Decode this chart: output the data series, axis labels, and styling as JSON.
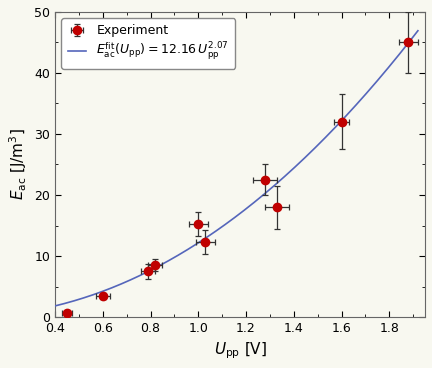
{
  "title": "",
  "xlabel": "$U_{\\mathrm{pp}}$ [V]",
  "ylabel": "$E_{\\mathrm{ac}}$ [J/m$^3$]",
  "xlim": [
    0.4,
    1.95
  ],
  "ylim": [
    0,
    50
  ],
  "xticks": [
    0.4,
    0.6,
    0.8,
    1.0,
    1.2,
    1.4,
    1.6,
    1.8
  ],
  "yticks": [
    0,
    10,
    20,
    30,
    40,
    50
  ],
  "data_x": [
    0.45,
    0.6,
    0.79,
    0.82,
    1.0,
    1.03,
    1.28,
    1.33,
    1.6,
    1.88
  ],
  "data_y": [
    0.6,
    3.5,
    7.5,
    8.5,
    15.2,
    12.3,
    22.5,
    18.0,
    32.0,
    45.0
  ],
  "xerr": [
    0.02,
    0.03,
    0.03,
    0.03,
    0.04,
    0.04,
    0.05,
    0.05,
    0.03,
    0.04
  ],
  "yerr": [
    0.3,
    0.5,
    1.2,
    1.0,
    2.0,
    2.0,
    2.5,
    3.5,
    4.5,
    5.0
  ],
  "fit_coeff": 12.16,
  "fit_exp": 2.07,
  "fit_xmin": 0.4,
  "fit_xmax": 1.92,
  "marker_color": "#c00000",
  "fit_color": "#5566bb",
  "legend_label_exp": "Experiment",
  "legend_label_fit": "$E_{\\mathrm{ac}}^{\\mathrm{fit}}(U_{\\mathrm{pp}}) = 12.16\\,U_{\\mathrm{pp}}^{2.07}$",
  "marker_size": 6,
  "marker": "o",
  "ecolor": "#333333",
  "elinewidth": 0.9,
  "capsize": 2.0,
  "fit_linewidth": 1.2,
  "bg_color": "#f8f8f0",
  "legend_fontsize": 9,
  "label_fontsize": 11,
  "tick_fontsize": 9
}
